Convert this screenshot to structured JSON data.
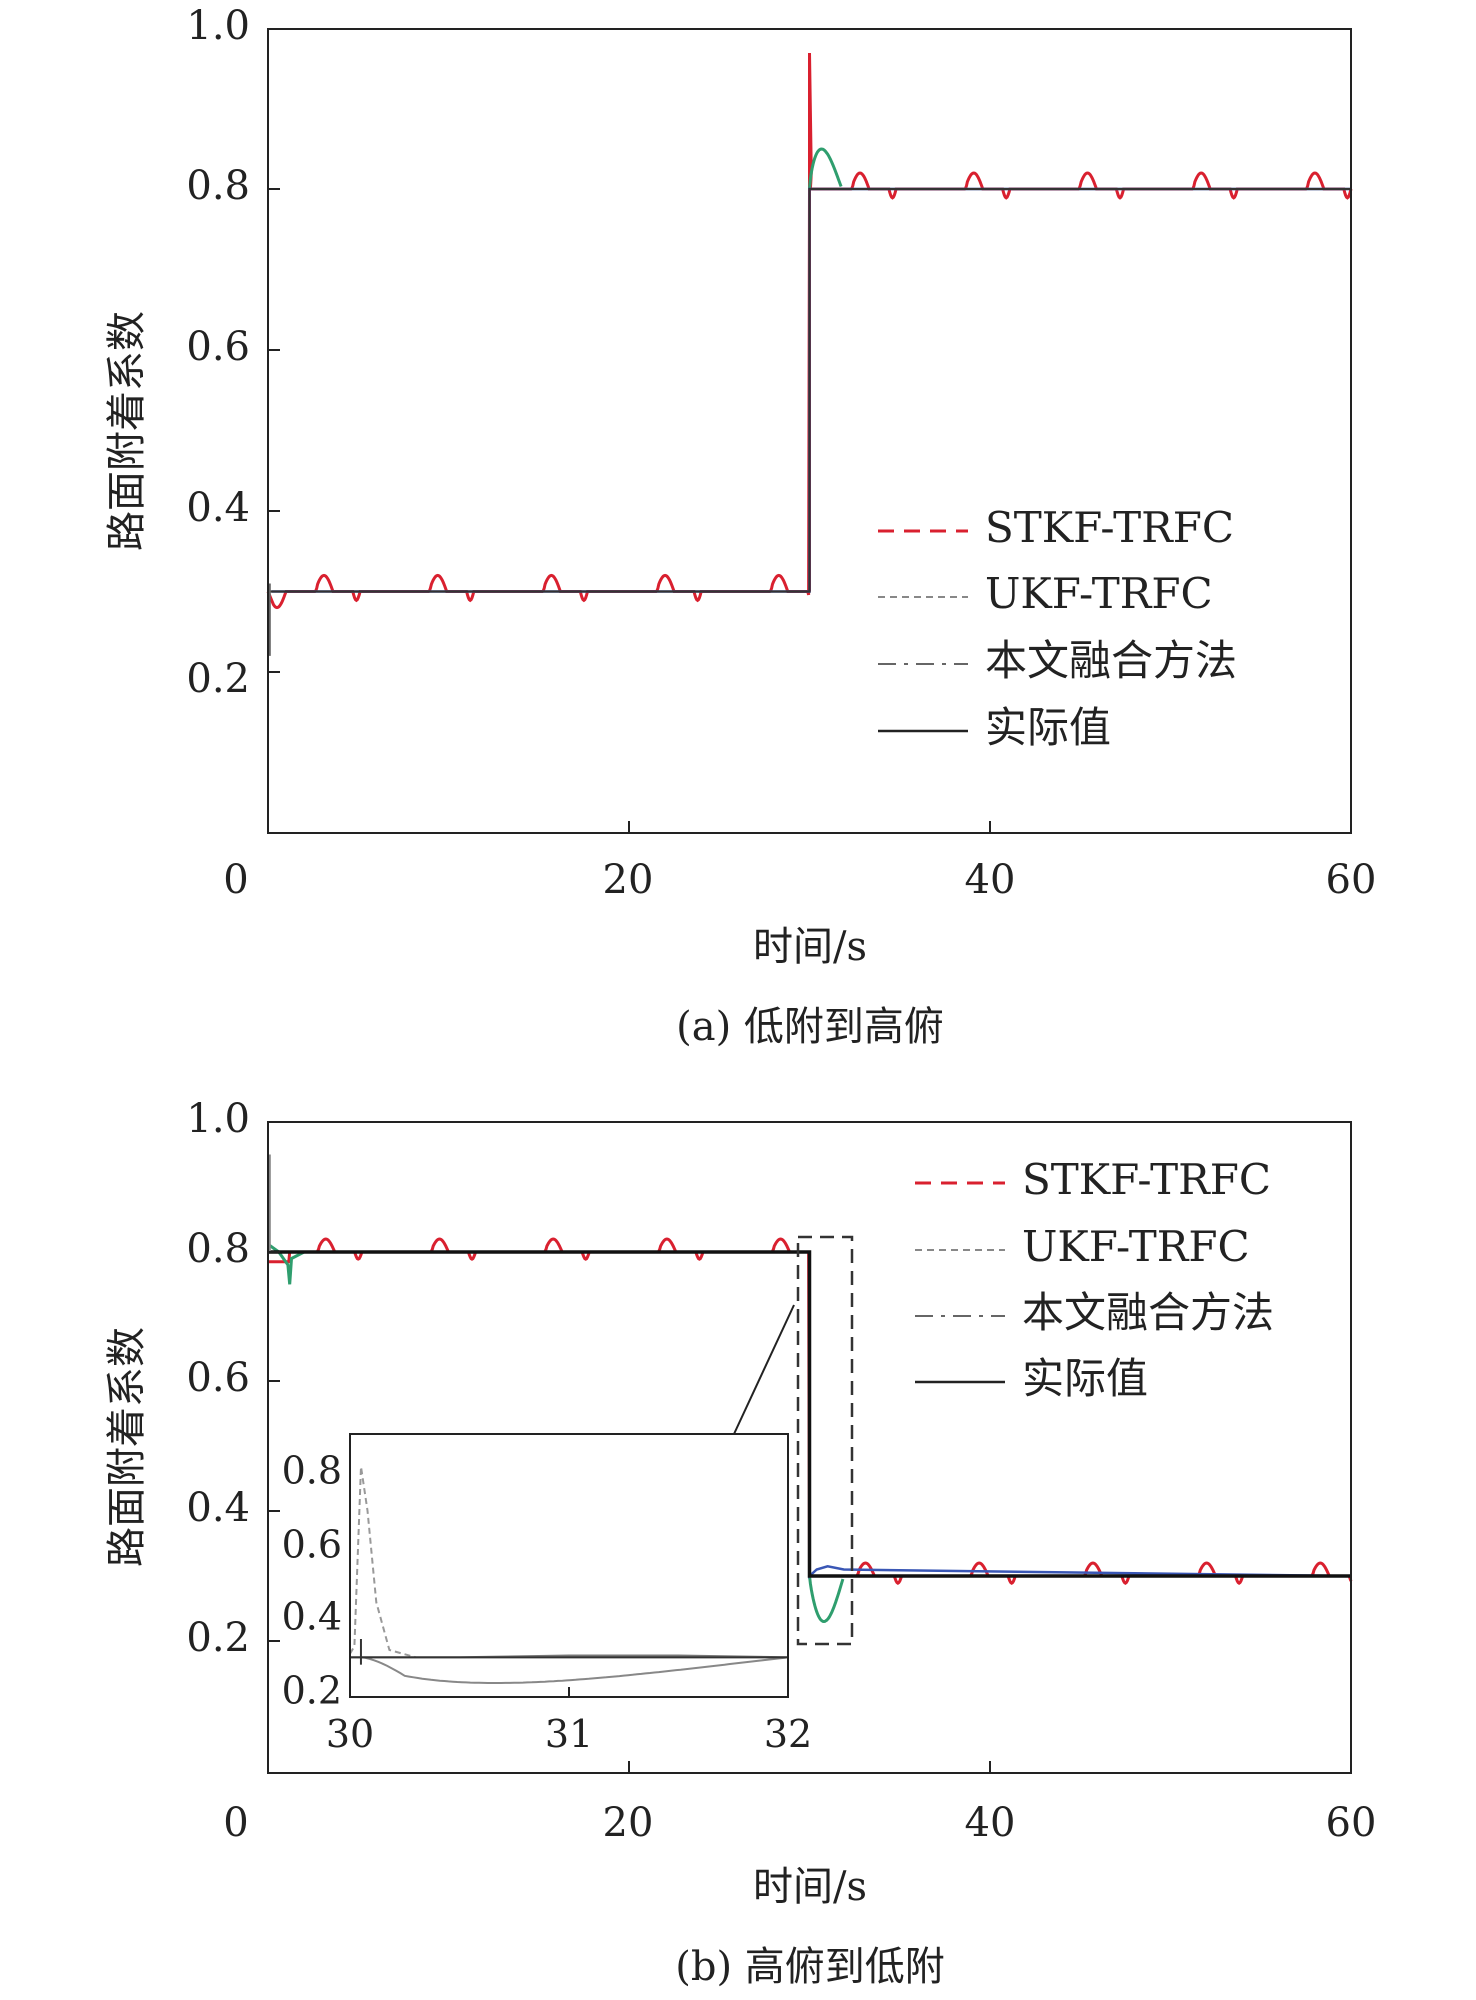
{
  "chart_data": [
    {
      "type": "line",
      "caption": "(a) 低附到高俯",
      "xlabel": "时间/s",
      "ylabel": "路面附着系数",
      "xlim": [
        0,
        60
      ],
      "ylim": [
        0,
        1.0
      ],
      "xticks": [
        "0",
        "20",
        "40",
        "60"
      ],
      "yticks": [
        "0.2",
        "0.4",
        "0.6",
        "0.8",
        "1.0"
      ],
      "legend_position": "lower-right",
      "legend": [
        "STKF-TRFC",
        "UKF-TRFC",
        "本文融合方法",
        "实际值"
      ],
      "colors": {
        "stkf": "#d9202f",
        "ukf": "#2f9e6e",
        "fusion": "#3a57b5",
        "actual": "#333333"
      },
      "actual": {
        "x": [
          0,
          30,
          30,
          60
        ],
        "y": [
          0.3,
          0.3,
          0.8,
          0.8
        ]
      },
      "step_time": 30,
      "low_level": 0.3,
      "high_level": 0.8,
      "stkf_peak": 0.97,
      "ukf_peak": 0.85,
      "bump_period": 6.3,
      "bump_amplitude": 0.02
    },
    {
      "type": "line",
      "caption": "(b) 高俯到低附",
      "xlabel": "时间/s",
      "ylabel": "路面附着系数",
      "xlim": [
        0,
        60
      ],
      "ylim": [
        0,
        1.0
      ],
      "xticks": [
        "0",
        "20",
        "40",
        "60"
      ],
      "yticks": [
        "0.2",
        "0.4",
        "0.6",
        "0.8",
        "1.0"
      ],
      "legend_position": "top-right",
      "legend": [
        "STKF-TRFC",
        "UKF-TRFC",
        "本文融合方法",
        "实际值"
      ],
      "colors": {
        "stkf": "#d9202f",
        "ukf": "#2f9e6e",
        "fusion": "#3a57b5",
        "actual": "#111111"
      },
      "actual": {
        "x": [
          0,
          30,
          30,
          60
        ],
        "y": [
          0.8,
          0.8,
          0.3,
          0.3
        ]
      },
      "step_time": 30,
      "low_level": 0.3,
      "high_level": 0.8,
      "ukf_dip": 0.23,
      "bump_period": 6.3,
      "bump_amplitude": 0.02,
      "inset": {
        "xlim": [
          30,
          32
        ],
        "ylim": [
          0.2,
          0.9
        ],
        "xticks": [
          "30",
          "31",
          "32"
        ],
        "yticks": [
          "0.2",
          "0.4",
          "0.6",
          "0.8"
        ]
      }
    }
  ]
}
